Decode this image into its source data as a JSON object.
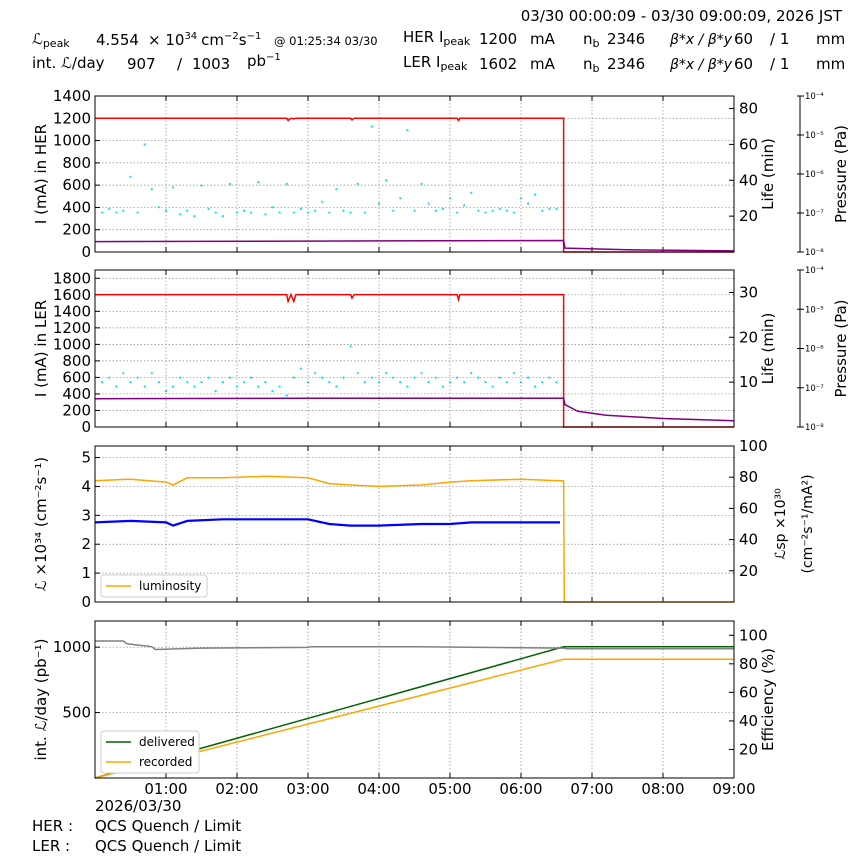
{
  "header": {
    "time_range": "03/30 00:00:09 - 03/30 09:00:09, 2026 JST",
    "lpeak_label": "ℒ",
    "lpeak_sub": "peak",
    "lpeak_value": "4.554",
    "lpeak_unit_prefix": "× 10",
    "lpeak_exp": "34",
    "lpeak_unit": "cm",
    "lpeak_unit_e1": "−2",
    "lpeak_unit_s": "s",
    "lpeak_unit_e2": "−1",
    "lpeak_time": "@ 01:25:34 03/30",
    "int_label": "int. ℒ/day",
    "int_value1": "907",
    "int_sep": "/",
    "int_value2": "1003",
    "int_unit": "pb",
    "int_unit_exp": "−1",
    "her_label": "HER I",
    "her_sub": "peak",
    "her_value": "1200",
    "her_unit": "mA",
    "ler_label": "LER I",
    "ler_sub": "peak",
    "ler_value": "1602",
    "ler_unit": "mA",
    "nb_label": "n",
    "nb_sub": "b",
    "her_nb": "2346",
    "ler_nb": "2346",
    "beta_label": "β*x / β*y",
    "her_betax": "60",
    "her_betay": "/ 1",
    "ler_betax": "60",
    "ler_betay": "/ 1",
    "beta_unit": "mm"
  },
  "footer": {
    "date": "2026/03/30",
    "her_label": "HER :",
    "her_status": "QCS Quench / Limit",
    "ler_label": "LER :",
    "ler_status": "QCS Quench / Limit"
  },
  "colors": {
    "current": "#ff0000",
    "life_points": "#00e5ee",
    "life_line": "#800080",
    "luminosity": "#ffa500",
    "specific": "#0000ff",
    "delivered": "#006400",
    "recorded": "#ffa500",
    "efficiency": "#808080",
    "grid": "#888888"
  },
  "chart_data": [
    {
      "type": "line",
      "name_panel": "her",
      "ylabel": "I (mA) in HER",
      "ylim": [
        0,
        1400
      ],
      "yticks": [
        "0",
        "200",
        "400",
        "600",
        "800",
        "1000",
        "1200",
        "1400"
      ],
      "y2label": "Life (min)",
      "y2lim": [
        0,
        87
      ],
      "y2ticks": [
        "20",
        "40",
        "60",
        "80"
      ],
      "y3label": "Pressure (Pa)",
      "y3ticks": [
        "10⁻⁴",
        "10⁻⁵",
        "10⁻⁶",
        "10⁻⁷",
        "10⁻⁸"
      ],
      "xlim": [
        0,
        9
      ],
      "series": [
        {
          "name": "current",
          "x": [
            0,
            2.7,
            2.72,
            2.76,
            2.8,
            2.83,
            3.6,
            3.62,
            3.65,
            5.1,
            5.12,
            5.14,
            6.6,
            6.6,
            9
          ],
          "values": [
            1200,
            1200,
            1180,
            1200,
            1195,
            1200,
            1200,
            1185,
            1200,
            1200,
            1180,
            1200,
            1200,
            0,
            0
          ]
        },
        {
          "name": "life",
          "x": [
            0,
            3,
            6.6,
            6.62,
            7.5,
            9
          ],
          "values": [
            5.8,
            6.1,
            6.4,
            2.2,
            1.2,
            0.6
          ]
        }
      ],
      "life_points": {
        "x": [
          0.1,
          0.2,
          0.3,
          0.4,
          0.5,
          0.6,
          0.7,
          0.8,
          0.9,
          1.0,
          1.1,
          1.2,
          1.3,
          1.4,
          1.5,
          1.6,
          1.7,
          1.8,
          1.9,
          2.0,
          2.1,
          2.2,
          2.3,
          2.4,
          2.5,
          2.6,
          2.7,
          2.8,
          2.9,
          3.0,
          3.1,
          3.2,
          3.3,
          3.4,
          3.5,
          3.6,
          3.7,
          3.8,
          3.9,
          4.0,
          4.1,
          4.2,
          4.3,
          4.4,
          4.5,
          4.6,
          4.7,
          4.8,
          4.9,
          5.0,
          5.1,
          5.2,
          5.3,
          5.4,
          5.5,
          5.6,
          5.7,
          5.8,
          5.9,
          6.0,
          6.1,
          6.2,
          6.3,
          6.4,
          6.5
        ],
        "values": [
          22,
          24,
          22,
          23,
          42,
          22,
          60,
          35,
          25,
          23,
          36,
          21,
          23,
          20,
          37,
          24,
          22,
          20,
          38,
          22,
          23,
          22,
          39,
          21,
          25,
          22,
          38,
          22,
          24,
          22,
          23,
          28,
          22,
          35,
          23,
          22,
          38,
          22,
          70,
          27,
          40,
          23,
          30,
          68,
          23,
          38,
          27,
          23,
          24,
          30,
          22,
          26,
          33,
          23,
          22,
          23,
          24,
          23,
          22,
          30,
          27,
          32,
          23,
          24,
          24
        ]
      }
    },
    {
      "type": "line",
      "name_panel": "ler",
      "ylabel": "I (mA) in LER",
      "ylim": [
        0,
        1900
      ],
      "yticks": [
        "0",
        "200",
        "400",
        "600",
        "800",
        "1000",
        "1200",
        "1400",
        "1600",
        "1800"
      ],
      "y2label": "Life (min)",
      "y2lim": [
        0,
        35
      ],
      "y2ticks": [
        "10",
        "20",
        "30"
      ],
      "y3label": "Pressure (Pa)",
      "y3ticks": [
        "10⁻⁴",
        "10⁻⁵",
        "10⁻⁶",
        "10⁻⁷",
        "10⁻⁸"
      ],
      "xlim": [
        0,
        9
      ],
      "series": [
        {
          "name": "current",
          "x": [
            0,
            2.7,
            2.72,
            2.76,
            2.8,
            2.83,
            3.6,
            3.62,
            3.65,
            5.1,
            5.12,
            5.14,
            6.6,
            6.6,
            9
          ],
          "values": [
            1602,
            1602,
            1520,
            1602,
            1520,
            1602,
            1602,
            1560,
            1602,
            1602,
            1540,
            1602,
            1602,
            0,
            0
          ]
        },
        {
          "name": "life",
          "x": [
            0,
            3,
            6.6,
            6.62,
            6.8,
            7.2,
            8,
            9
          ],
          "values": [
            6.3,
            6.4,
            6.4,
            5.0,
            3.5,
            2.6,
            1.9,
            1.4
          ]
        }
      ],
      "life_points": {
        "x": [
          0.1,
          0.2,
          0.3,
          0.4,
          0.5,
          0.6,
          0.7,
          0.8,
          0.9,
          1.0,
          1.1,
          1.2,
          1.3,
          1.4,
          1.5,
          1.6,
          1.7,
          1.8,
          1.9,
          2.0,
          2.1,
          2.2,
          2.3,
          2.4,
          2.5,
          2.6,
          2.7,
          2.8,
          2.9,
          3.0,
          3.1,
          3.2,
          3.3,
          3.4,
          3.5,
          3.6,
          3.7,
          3.8,
          3.9,
          4.0,
          4.1,
          4.2,
          4.3,
          4.4,
          4.5,
          4.6,
          4.7,
          4.8,
          4.9,
          5.0,
          5.1,
          5.2,
          5.3,
          5.4,
          5.5,
          5.6,
          5.7,
          5.8,
          5.9,
          6.0,
          6.1,
          6.2,
          6.3,
          6.4,
          6.5
        ],
        "values": [
          10,
          11,
          9,
          12,
          10,
          11,
          9,
          12,
          10,
          8,
          9,
          11,
          10,
          9,
          10,
          11,
          8,
          10,
          11,
          9,
          10,
          11,
          9,
          10,
          8,
          9,
          7,
          11,
          13,
          10,
          12,
          11,
          10,
          9,
          11,
          18,
          12,
          10,
          11,
          10,
          12,
          11,
          10,
          9,
          11,
          12,
          10,
          11,
          9,
          10,
          11,
          10,
          12,
          11,
          10,
          9,
          11,
          10,
          12,
          10,
          11,
          9,
          10,
          11,
          10
        ]
      }
    },
    {
      "type": "line",
      "name_panel": "lumi",
      "ylabel": "ℒ ×10³⁴ (cm⁻²s⁻¹)",
      "ylim": [
        0,
        5.4
      ],
      "yticks": [
        "0",
        "1",
        "2",
        "3",
        "4",
        "5"
      ],
      "y2label_1": "ℒsp ×10³⁰",
      "y2label_2": "(cm⁻²s⁻¹/mA²)",
      "y2lim": [
        0,
        100
      ],
      "y2ticks": [
        "20",
        "40",
        "60",
        "80",
        "100"
      ],
      "xlim": [
        0,
        9
      ],
      "legend": [
        "luminosity"
      ],
      "series": [
        {
          "name": "luminosity",
          "x": [
            0,
            0.5,
            1.0,
            1.1,
            1.3,
            1.8,
            2.4,
            3.0,
            3.3,
            3.6,
            4.0,
            4.6,
            5.0,
            5.3,
            6.0,
            6.55,
            6.6,
            6.61,
            9
          ],
          "values": [
            4.2,
            4.25,
            4.15,
            4.05,
            4.3,
            4.3,
            4.35,
            4.3,
            4.1,
            4.05,
            4.0,
            4.05,
            4.15,
            4.2,
            4.25,
            4.2,
            4.2,
            0,
            0
          ]
        },
        {
          "name": "specific",
          "x": [
            0,
            0.5,
            1.0,
            1.1,
            1.3,
            1.8,
            2.4,
            3.0,
            3.3,
            3.6,
            4.0,
            4.6,
            5.0,
            5.3,
            6.0,
            6.55
          ],
          "values": [
            51,
            52,
            51,
            49,
            52,
            53,
            53,
            53,
            50,
            49,
            49,
            50,
            50,
            51,
            51,
            51
          ]
        }
      ]
    },
    {
      "type": "line",
      "name_panel": "intlumi",
      "ylabel": "int. ℒ/day (pb⁻¹)",
      "ylim": [
        0,
        1200
      ],
      "yticks": [
        "500",
        "1000"
      ],
      "y2label": "Efficiency (%)",
      "y2lim": [
        0,
        110
      ],
      "y2ticks": [
        "20",
        "40",
        "60",
        "80",
        "100"
      ],
      "xlim": [
        0,
        9
      ],
      "xticks": [
        "01:00",
        "02:00",
        "03:00",
        "04:00",
        "05:00",
        "06:00",
        "07:00",
        "08:00",
        "09:00"
      ],
      "legend": [
        "delivered",
        "recorded"
      ],
      "series": [
        {
          "name": "delivered",
          "x": [
            0,
            6.6,
            9
          ],
          "values": [
            0,
            1003,
            1003
          ]
        },
        {
          "name": "recorded",
          "x": [
            0,
            6.6,
            9
          ],
          "values": [
            0,
            907,
            907
          ]
        },
        {
          "name": "efficiency",
          "x": [
            0,
            0.4,
            0.45,
            0.8,
            0.85,
            1.5,
            3.0,
            3.05,
            4.5,
            6.6,
            6.65,
            9
          ],
          "values": [
            96,
            96,
            94,
            92,
            90,
            91,
            91.5,
            92,
            92,
            91,
            90.5,
            90.5
          ]
        }
      ]
    }
  ]
}
